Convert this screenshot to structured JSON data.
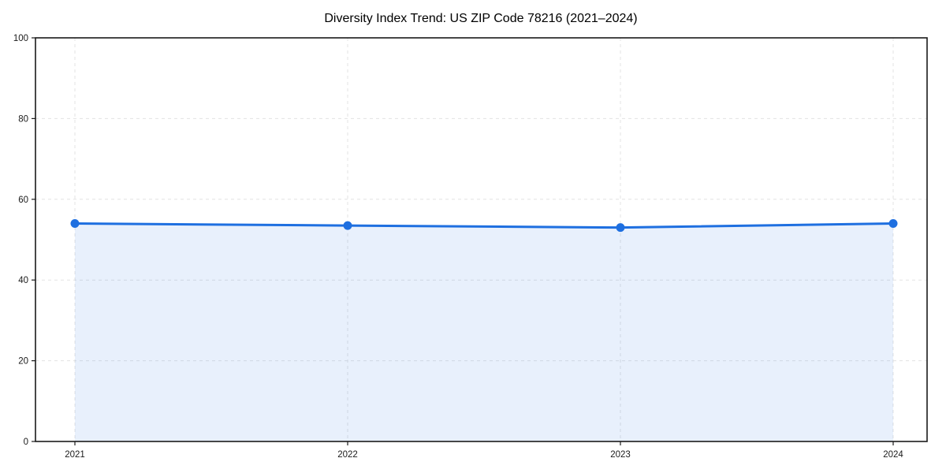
{
  "chart_data": {
    "type": "area",
    "title": "Diversity Index Trend: US ZIP Code 78216 (2021–2024)",
    "series_name": "Diversity Index",
    "categories": [
      "2021",
      "2022",
      "2023",
      "2024"
    ],
    "values": [
      54,
      53.5,
      53,
      54
    ],
    "xlabel": "",
    "ylabel": "",
    "ylim": [
      0,
      100
    ],
    "yticks": [
      0,
      20,
      40,
      60,
      80,
      100
    ],
    "grid": "dashed-both-axes",
    "legend_position": "none",
    "colors": {
      "line": "#1e6fe0",
      "marker": "#1e6fe0",
      "fill": "#1e6fe0",
      "fill_opacity": 0.1,
      "grid": "#e3e3e3",
      "axis": "#1a1a1a",
      "background": "#ffffff"
    }
  }
}
